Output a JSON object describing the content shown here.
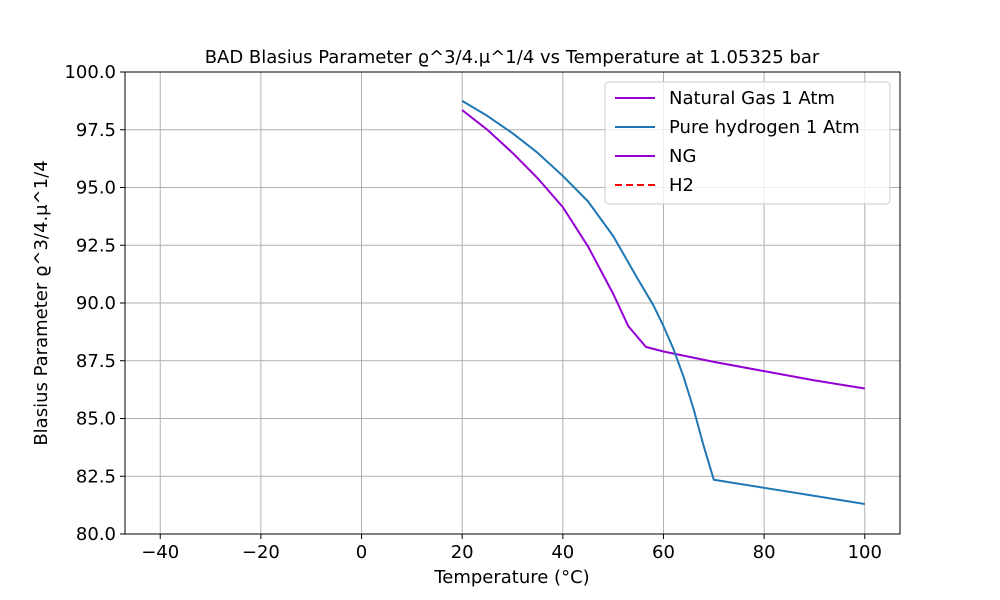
{
  "chart_data": {
    "type": "line",
    "title": "BAD Blasius Parameter  ϱ^3/4.μ^1/4 vs Temperature at 1.05325 bar",
    "xlabel": "Temperature (°C)",
    "ylabel": "Blasius Parameter  ϱ^3/4.μ^1/4",
    "xlim": [
      -47,
      107
    ],
    "ylim": [
      80.0,
      100.0
    ],
    "xticks": [
      -40,
      -20,
      0,
      20,
      40,
      60,
      80,
      100
    ],
    "xtick_labels": [
      "−40",
      "−20",
      "0",
      "20",
      "40",
      "60",
      "80",
      "100"
    ],
    "yticks": [
      80.0,
      82.5,
      85.0,
      87.5,
      90.0,
      92.5,
      95.0,
      97.5,
      100.0
    ],
    "ytick_labels": [
      "80.0",
      "82.5",
      "85.0",
      "87.5",
      "90.0",
      "92.5",
      "95.0",
      "97.5",
      "100.0"
    ],
    "grid": true,
    "legend_position": "top-right",
    "series": [
      {
        "name": "Natural Gas  1 Atm",
        "color": "#9400d3",
        "dash": "solid",
        "x": [
          20,
          25,
          30,
          35,
          40,
          45,
          50,
          53,
          56.5,
          60,
          70,
          80,
          90,
          100
        ],
        "y": [
          98.35,
          97.5,
          96.5,
          95.4,
          94.15,
          92.45,
          90.4,
          89.0,
          88.1,
          87.9,
          87.45,
          87.05,
          86.65,
          86.3
        ]
      },
      {
        "name": "Pure hydrogen 1 Atm",
        "color": "#1f77b4",
        "dash": "solid",
        "x": [
          20,
          25,
          30,
          35,
          40,
          45,
          50,
          55,
          58,
          60,
          62,
          64,
          66,
          68,
          70,
          80,
          90,
          100
        ],
        "y": [
          98.75,
          98.1,
          97.35,
          96.5,
          95.5,
          94.4,
          92.9,
          91.0,
          89.9,
          89.0,
          88.0,
          86.8,
          85.4,
          83.8,
          82.35,
          82.0,
          81.65,
          81.3
        ]
      },
      {
        "name": "NG",
        "color": "#9400d3",
        "dash": "solid",
        "x": [],
        "y": []
      },
      {
        "name": "H2",
        "color": "#ff0000",
        "dash": "dashed",
        "x": [],
        "y": []
      }
    ]
  }
}
